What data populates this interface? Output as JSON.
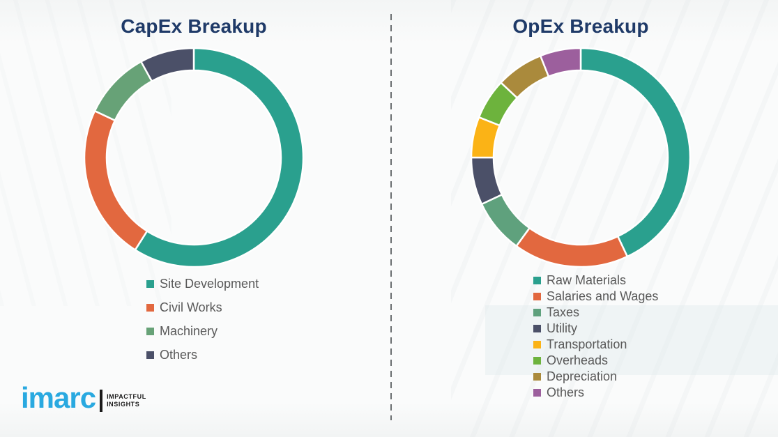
{
  "chart_data": [
    {
      "type": "pie",
      "subtype": "donut",
      "title": "CapEx Breakup",
      "labels": [
        "Site Development",
        "Civil Works",
        "Machinery",
        "Others"
      ],
      "values": [
        59,
        23,
        10,
        8
      ],
      "values_note": "percent shares estimated from arc angles; no numeric labels shown in image",
      "colors": [
        "#2aa08e",
        "#e2683f",
        "#67a277",
        "#4b5068"
      ],
      "start_angle_deg": 0,
      "direction": "clockwise",
      "legend_position": "below"
    },
    {
      "type": "pie",
      "subtype": "donut",
      "title": "OpEx Breakup",
      "labels": [
        "Raw Materials",
        "Salaries and Wages",
        "Taxes",
        "Utility",
        "Transportation",
        "Overheads",
        "Depreciation",
        "Others"
      ],
      "values": [
        43,
        17,
        8,
        7,
        6,
        6,
        7,
        6
      ],
      "values_note": "percent shares estimated from arc angles; no numeric labels shown in image",
      "colors": [
        "#2aa08e",
        "#e2683f",
        "#5fa17d",
        "#4b5068",
        "#fbb316",
        "#6db33d",
        "#aa8a3c",
        "#9c5f9d"
      ],
      "start_angle_deg": 0,
      "direction": "clockwise",
      "legend_position": "below"
    }
  ],
  "style": {
    "title_color": "#1f3a68",
    "legend_text_color": "#595959",
    "divider_color": "#6a6e70",
    "segment_gap_color": "#ffffff"
  },
  "brand": {
    "name": "imarc",
    "tagline_line1": "IMPACTFUL",
    "tagline_line2": "INSIGHTS",
    "logo_color": "#29a9e0"
  },
  "geometry": {
    "donut_outer_radius": 157,
    "donut_inner_radius": 125,
    "donut_size": 316
  }
}
